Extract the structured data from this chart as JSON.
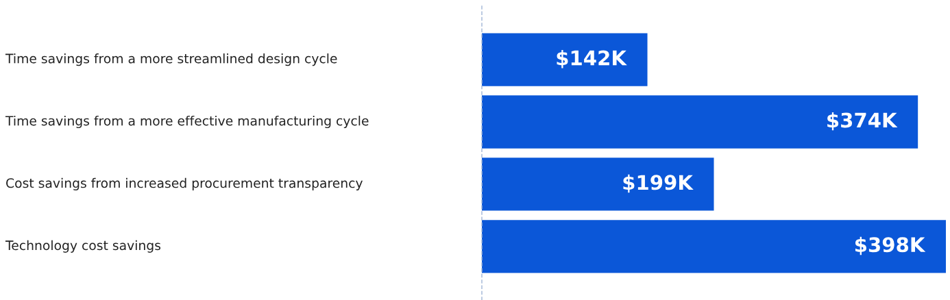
{
  "chart_data": {
    "type": "bar",
    "orientation": "horizontal",
    "categories": [
      "Time savings from a more streamlined design cycle",
      "Time savings from a more effective manufacturing cycle",
      "Cost savings from increased procurement transparency",
      "Technology cost savings"
    ],
    "values": [
      142,
      374,
      199,
      398
    ],
    "value_labels": [
      "$142K",
      "$374K",
      "$199K",
      "$398K"
    ],
    "color": "#0b57d8"
  }
}
